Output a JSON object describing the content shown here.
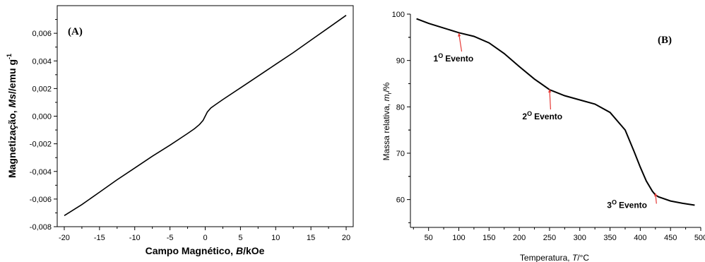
{
  "chart_data": [
    {
      "type": "line",
      "panel_label": "(A)",
      "xlabel": "Campo Magnético, B/kOe",
      "xlabel_parts": {
        "pre": "Campo Magnético, ",
        "var": "B",
        "post": "/kOe"
      },
      "ylabel": "Magnetização, Ms//emu g-1",
      "ylabel_parts": {
        "pre": "Magnetização, ",
        "var": "Ms",
        "post": "//emu g",
        "sup": "-1"
      },
      "xlim": [
        -21,
        21
      ],
      "ylim": [
        -0.008,
        0.008
      ],
      "xticks": [
        -20,
        -15,
        -10,
        -5,
        0,
        5,
        10,
        15,
        20
      ],
      "xtick_labels": [
        "-20",
        "-15",
        "-10",
        "-5",
        "0",
        "5",
        "10",
        "15",
        "20"
      ],
      "yticks": [
        -0.008,
        -0.006,
        -0.004,
        -0.002,
        0.0,
        0.002,
        0.004,
        0.006
      ],
      "ytick_labels": [
        "-0,008",
        "-0,006",
        "-0,004",
        "-0,002",
        "0,000",
        "0,002",
        "0,004",
        "0,006"
      ],
      "grid": false,
      "series": [
        {
          "x": [
            -20,
            -17.5,
            -15,
            -12.5,
            -10,
            -7.5,
            -5,
            -2.5,
            -1.5,
            -0.8,
            -0.3,
            0,
            0.3,
            0.8,
            1.5,
            2.5,
            5,
            7.5,
            10,
            12.5,
            15,
            17.5,
            20
          ],
          "y": [
            -0.0072,
            -0.0064,
            -0.0055,
            -0.0046,
            -0.00375,
            -0.0029,
            -0.0021,
            -0.00125,
            -0.0009,
            -0.0006,
            -0.0003,
            0.0,
            0.0003,
            0.0006,
            0.00085,
            0.0012,
            0.00205,
            0.0029,
            0.00375,
            0.0046,
            0.0055,
            0.0064,
            0.0073
          ]
        }
      ]
    },
    {
      "type": "line",
      "panel_label": "(B)",
      "xlabel": "Temperatura, T/°C",
      "xlabel_parts": {
        "pre": "Temperatura, ",
        "var": "T",
        "post": "/°C"
      },
      "ylabel": "Massa relativa, mr/%",
      "ylabel_parts": {
        "pre": "Massa relativa, ",
        "var": "m",
        "sub": "r",
        "post": "/%"
      },
      "xlim": [
        20,
        500
      ],
      "ylim": [
        54,
        100
      ],
      "xticks": [
        50,
        100,
        150,
        200,
        250,
        300,
        350,
        400,
        450,
        500
      ],
      "xtick_labels": [
        "50",
        "100",
        "150",
        "200",
        "250",
        "300",
        "350",
        "400",
        "450",
        "500"
      ],
      "yticks": [
        60,
        70,
        80,
        90,
        100
      ],
      "ytick_labels": [
        "60",
        "70",
        "80",
        "90",
        "100"
      ],
      "grid": false,
      "series": [
        {
          "x": [
            30,
            50,
            75,
            100,
            125,
            150,
            175,
            200,
            225,
            250,
            275,
            300,
            325,
            350,
            375,
            390,
            400,
            410,
            420,
            425,
            430,
            450,
            470,
            490
          ],
          "y": [
            99.0,
            98.0,
            97.0,
            96.0,
            95.2,
            93.8,
            91.5,
            88.7,
            86.0,
            83.7,
            82.4,
            81.5,
            80.6,
            78.8,
            75.0,
            70.3,
            67.0,
            64.0,
            61.8,
            61.0,
            60.6,
            59.7,
            59.2,
            58.8
          ]
        }
      ],
      "annotations": [
        {
          "label_num": "1",
          "label_deg": "O",
          "label_text": "Evento",
          "point": [
            100,
            95.9
          ],
          "text_at": [
            58,
            89.8
          ]
        },
        {
          "label_num": "2",
          "label_deg": "O",
          "label_text": "Evento",
          "point": [
            250,
            83.8
          ],
          "text_at": [
            205,
            77.3
          ]
        },
        {
          "label_num": "3",
          "label_deg": "O",
          "label_text": "Evento",
          "point": [
            425,
            61.4
          ],
          "text_at": [
            345,
            58.2
          ]
        }
      ]
    }
  ]
}
